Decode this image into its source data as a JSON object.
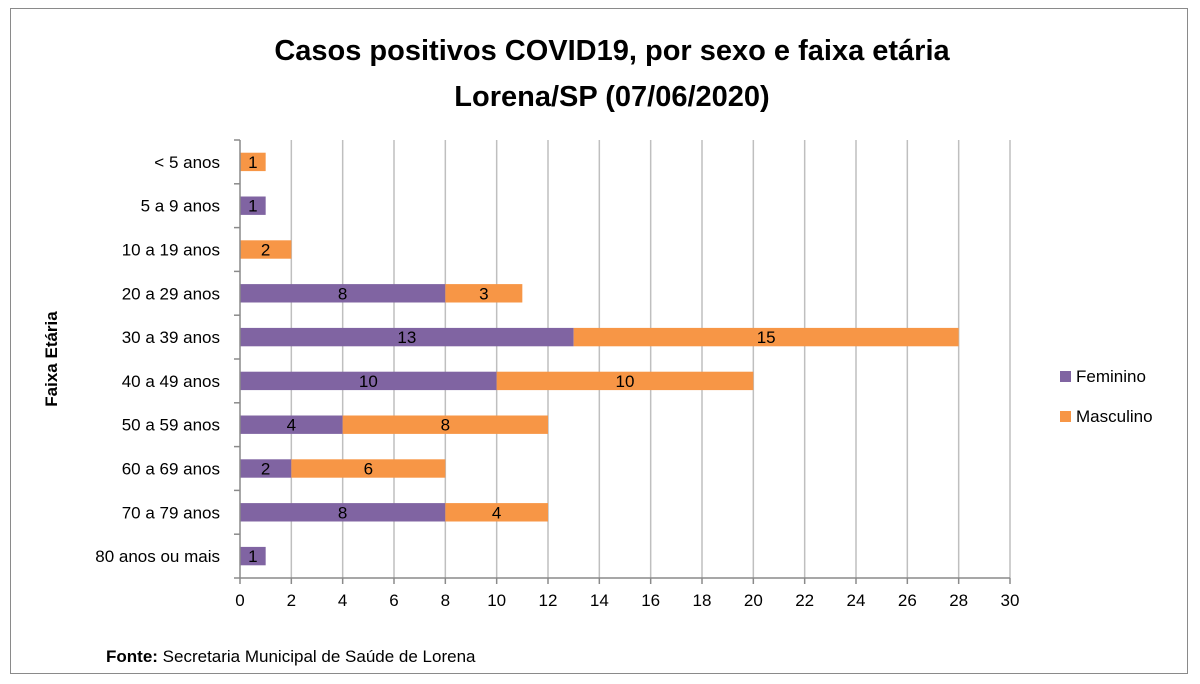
{
  "chart_data": {
    "type": "bar",
    "orientation": "horizontal",
    "stacked": true,
    "title_lines": [
      "Casos positivos COVID19, por sexo e faixa etária",
      "Lorena/SP (07/06/2020)"
    ],
    "ylabel": "Faixa Etária",
    "xlabel": "",
    "categories": [
      "< 5 anos",
      "5 a 9 anos",
      "10 a 19 anos",
      "20 a 29 anos",
      "30 a 39 anos",
      "40 a 49 anos",
      "50 a 59 anos",
      "60 a 69 anos",
      "70 a 79 anos",
      "80 anos ou mais"
    ],
    "series": [
      {
        "name": "Feminino",
        "color": "#8064a2",
        "values": [
          0,
          1,
          0,
          8,
          13,
          10,
          4,
          2,
          8,
          1
        ]
      },
      {
        "name": "Masculino",
        "color": "#f79646",
        "values": [
          1,
          0,
          2,
          3,
          15,
          10,
          8,
          6,
          4,
          0
        ]
      }
    ],
    "xlim": [
      0,
      30
    ],
    "xticks": [
      0,
      2,
      4,
      6,
      8,
      10,
      12,
      14,
      16,
      18,
      20,
      22,
      24,
      26,
      28,
      30
    ],
    "grid": true,
    "legend": "right"
  },
  "source": {
    "label": "Fonte:",
    "text": " Secretaria Municipal de Saúde de Lorena"
  }
}
